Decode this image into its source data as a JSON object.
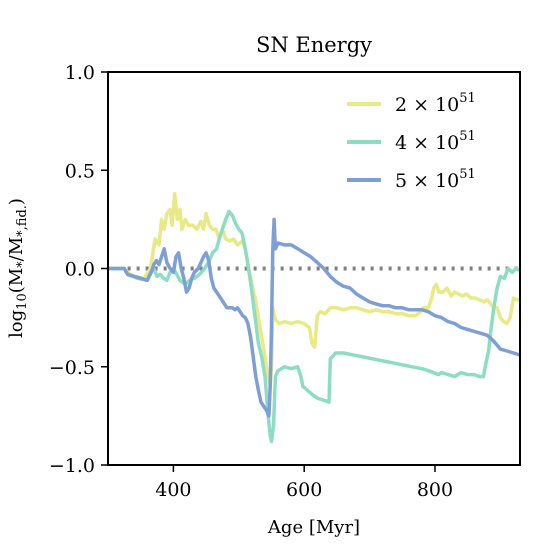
{
  "chart_data": {
    "type": "line",
    "title": "SN Energy",
    "xlabel": "Age [Myr]",
    "ylabel": "log₁₀(M₊/M₊,fid.)",
    "ylabel_parts": {
      "log": "log",
      "log_sub": "10",
      "open": "(M",
      "star1": "*",
      "slash": "/M",
      "star2": "*,fid.",
      "close": ")"
    },
    "xlim": [
      300,
      930
    ],
    "ylim": [
      -1.0,
      1.0
    ],
    "x_ticks": [
      400,
      600,
      800
    ],
    "x_tick_labels": [
      "400",
      "600",
      "800"
    ],
    "y_ticks": [
      1.0,
      0.5,
      0.0,
      -0.5,
      -1.0
    ],
    "y_tick_labels": [
      "1.0",
      "0.5",
      "0.0",
      "−0.5",
      "−1.0"
    ],
    "grid": false,
    "legend_position": "top-right",
    "reference_line": {
      "y": 0.0,
      "style": "dotted",
      "color": "#808080"
    },
    "series": [
      {
        "name": "2 × 10",
        "name_exp": "51",
        "color": "#e8ea86",
        "points": [
          [
            300,
            0.0
          ],
          [
            325,
            0.0
          ],
          [
            330,
            -0.02
          ],
          [
            340,
            -0.04
          ],
          [
            355,
            -0.05
          ],
          [
            365,
            0.0
          ],
          [
            372,
            0.15
          ],
          [
            378,
            0.12
          ],
          [
            382,
            0.25
          ],
          [
            386,
            0.2
          ],
          [
            390,
            0.28
          ],
          [
            395,
            0.3
          ],
          [
            398,
            0.22
          ],
          [
            402,
            0.38
          ],
          [
            406,
            0.25
          ],
          [
            410,
            0.3
          ],
          [
            413,
            0.2
          ],
          [
            418,
            0.25
          ],
          [
            423,
            0.22
          ],
          [
            430,
            0.22
          ],
          [
            436,
            0.2
          ],
          [
            442,
            0.24
          ],
          [
            446,
            0.2
          ],
          [
            450,
            0.28
          ],
          [
            455,
            0.22
          ],
          [
            460,
            0.2
          ],
          [
            465,
            0.2
          ],
          [
            470,
            0.15
          ],
          [
            475,
            0.2
          ],
          [
            480,
            0.15
          ],
          [
            486,
            0.14
          ],
          [
            492,
            0.15
          ],
          [
            498,
            0.12
          ],
          [
            505,
            0.14
          ],
          [
            510,
            0.1
          ],
          [
            515,
            0.0
          ],
          [
            520,
            -0.08
          ],
          [
            525,
            -0.15
          ],
          [
            530,
            -0.25
          ],
          [
            535,
            -0.35
          ],
          [
            540,
            -0.45
          ],
          [
            545,
            -0.55
          ],
          [
            548,
            -0.6
          ],
          [
            550,
            -0.5
          ],
          [
            552,
            -0.2
          ],
          [
            556,
            -0.26
          ],
          [
            562,
            -0.28
          ],
          [
            570,
            -0.27
          ],
          [
            580,
            -0.28
          ],
          [
            590,
            -0.27
          ],
          [
            600,
            -0.28
          ],
          [
            608,
            -0.3
          ],
          [
            612,
            -0.38
          ],
          [
            616,
            -0.4
          ],
          [
            620,
            -0.24
          ],
          [
            625,
            -0.22
          ],
          [
            632,
            -0.23
          ],
          [
            640,
            -0.2
          ],
          [
            650,
            -0.2
          ],
          [
            660,
            -0.21
          ],
          [
            670,
            -0.2
          ],
          [
            680,
            -0.2
          ],
          [
            690,
            -0.21
          ],
          [
            700,
            -0.22
          ],
          [
            710,
            -0.21
          ],
          [
            720,
            -0.22
          ],
          [
            730,
            -0.22
          ],
          [
            740,
            -0.23
          ],
          [
            750,
            -0.23
          ],
          [
            760,
            -0.24
          ],
          [
            770,
            -0.24
          ],
          [
            778,
            -0.22
          ],
          [
            782,
            -0.2
          ],
          [
            790,
            -0.2
          ],
          [
            795,
            -0.15
          ],
          [
            798,
            -0.1
          ],
          [
            802,
            -0.08
          ],
          [
            806,
            -0.12
          ],
          [
            812,
            -0.12
          ],
          [
            818,
            -0.1
          ],
          [
            825,
            -0.14
          ],
          [
            830,
            -0.12
          ],
          [
            836,
            -0.13
          ],
          [
            842,
            -0.14
          ],
          [
            848,
            -0.13
          ],
          [
            855,
            -0.15
          ],
          [
            862,
            -0.15
          ],
          [
            868,
            -0.16
          ],
          [
            875,
            -0.17
          ],
          [
            880,
            -0.16
          ],
          [
            885,
            -0.18
          ],
          [
            890,
            -0.2
          ],
          [
            895,
            -0.2
          ],
          [
            900,
            -0.25
          ],
          [
            905,
            -0.27
          ],
          [
            910,
            -0.28
          ],
          [
            915,
            -0.25
          ],
          [
            920,
            -0.15
          ],
          [
            925,
            -0.16
          ],
          [
            930,
            -0.16
          ]
        ]
      },
      {
        "name": "4 × 10",
        "name_exp": "51",
        "color": "#8ddcc4",
        "points": [
          [
            300,
            0.0
          ],
          [
            325,
            0.0
          ],
          [
            330,
            -0.03
          ],
          [
            345,
            -0.05
          ],
          [
            360,
            -0.06
          ],
          [
            365,
            -0.02
          ],
          [
            370,
            0.0
          ],
          [
            375,
            -0.04
          ],
          [
            380,
            -0.03
          ],
          [
            385,
            -0.05
          ],
          [
            390,
            -0.06
          ],
          [
            395,
            -0.02
          ],
          [
            400,
            0.0
          ],
          [
            405,
            -0.03
          ],
          [
            410,
            -0.06
          ],
          [
            418,
            -0.08
          ],
          [
            425,
            -0.06
          ],
          [
            432,
            -0.05
          ],
          [
            440,
            -0.03
          ],
          [
            448,
            0.0
          ],
          [
            455,
            0.04
          ],
          [
            460,
            0.08
          ],
          [
            466,
            0.1
          ],
          [
            470,
            0.15
          ],
          [
            475,
            0.2
          ],
          [
            480,
            0.25
          ],
          [
            485,
            0.29
          ],
          [
            490,
            0.27
          ],
          [
            495,
            0.23
          ],
          [
            500,
            0.2
          ],
          [
            505,
            0.18
          ],
          [
            510,
            0.1
          ],
          [
            515,
            0.0
          ],
          [
            520,
            -0.12
          ],
          [
            525,
            -0.25
          ],
          [
            530,
            -0.38
          ],
          [
            535,
            -0.45
          ],
          [
            540,
            -0.55
          ],
          [
            545,
            -0.75
          ],
          [
            548,
            -0.85
          ],
          [
            550,
            -0.88
          ],
          [
            553,
            -0.8
          ],
          [
            556,
            -0.55
          ],
          [
            560,
            -0.52
          ],
          [
            570,
            -0.5
          ],
          [
            580,
            -0.51
          ],
          [
            590,
            -0.5
          ],
          [
            595,
            -0.55
          ],
          [
            598,
            -0.6
          ],
          [
            605,
            -0.62
          ],
          [
            612,
            -0.64
          ],
          [
            620,
            -0.66
          ],
          [
            630,
            -0.67
          ],
          [
            638,
            -0.68
          ],
          [
            640,
            -0.46
          ],
          [
            648,
            -0.43
          ],
          [
            660,
            -0.43
          ],
          [
            675,
            -0.44
          ],
          [
            690,
            -0.45
          ],
          [
            705,
            -0.46
          ],
          [
            720,
            -0.47
          ],
          [
            735,
            -0.48
          ],
          [
            750,
            -0.49
          ],
          [
            765,
            -0.5
          ],
          [
            780,
            -0.51
          ],
          [
            790,
            -0.52
          ],
          [
            798,
            -0.53
          ],
          [
            805,
            -0.54
          ],
          [
            810,
            -0.53
          ],
          [
            820,
            -0.54
          ],
          [
            830,
            -0.55
          ],
          [
            840,
            -0.53
          ],
          [
            850,
            -0.54
          ],
          [
            860,
            -0.54
          ],
          [
            868,
            -0.55
          ],
          [
            874,
            -0.55
          ],
          [
            878,
            -0.48
          ],
          [
            882,
            -0.42
          ],
          [
            886,
            -0.3
          ],
          [
            890,
            -0.2
          ],
          [
            895,
            -0.1
          ],
          [
            900,
            -0.04
          ],
          [
            906,
            -0.05
          ],
          [
            912,
            0.0
          ],
          [
            918,
            -0.02
          ],
          [
            924,
            0.0
          ],
          [
            930,
            -0.01
          ]
        ]
      },
      {
        "name": "5 × 10",
        "name_exp": "51",
        "color": "#7e9ed6",
        "points": [
          [
            300,
            0.0
          ],
          [
            325,
            0.0
          ],
          [
            330,
            -0.03
          ],
          [
            340,
            -0.04
          ],
          [
            350,
            -0.05
          ],
          [
            360,
            -0.06
          ],
          [
            366,
            -0.02
          ],
          [
            370,
            0.02
          ],
          [
            374,
            0.04
          ],
          [
            378,
            0.02
          ],
          [
            382,
            0.06
          ],
          [
            386,
            0.1
          ],
          [
            390,
            0.03
          ],
          [
            395,
            0.0
          ],
          [
            400,
            -0.02
          ],
          [
            404,
            0.06
          ],
          [
            408,
            0.08
          ],
          [
            412,
            0.0
          ],
          [
            416,
            -0.05
          ],
          [
            420,
            -0.12
          ],
          [
            424,
            -0.1
          ],
          [
            428,
            -0.05
          ],
          [
            432,
            -0.02
          ],
          [
            438,
            0.0
          ],
          [
            442,
            0.03
          ],
          [
            446,
            0.06
          ],
          [
            450,
            0.08
          ],
          [
            454,
            0.04
          ],
          [
            458,
            -0.05
          ],
          [
            462,
            -0.1
          ],
          [
            466,
            -0.12
          ],
          [
            470,
            -0.14
          ],
          [
            474,
            -0.16
          ],
          [
            478,
            -0.18
          ],
          [
            482,
            -0.2
          ],
          [
            486,
            -0.2
          ],
          [
            490,
            -0.2
          ],
          [
            494,
            -0.21
          ],
          [
            498,
            -0.2
          ],
          [
            502,
            -0.22
          ],
          [
            506,
            -0.24
          ],
          [
            510,
            -0.25
          ],
          [
            514,
            -0.28
          ],
          [
            518,
            -0.35
          ],
          [
            522,
            -0.45
          ],
          [
            526,
            -0.55
          ],
          [
            530,
            -0.62
          ],
          [
            534,
            -0.68
          ],
          [
            538,
            -0.7
          ],
          [
            542,
            -0.72
          ],
          [
            546,
            -0.75
          ],
          [
            548,
            -0.6
          ],
          [
            550,
            -0.3
          ],
          [
            552,
            0.1
          ],
          [
            554,
            0.25
          ],
          [
            556,
            0.1
          ],
          [
            560,
            0.13
          ],
          [
            570,
            0.12
          ],
          [
            580,
            0.12
          ],
          [
            590,
            0.1
          ],
          [
            600,
            0.08
          ],
          [
            610,
            0.06
          ],
          [
            620,
            0.03
          ],
          [
            630,
            0.0
          ],
          [
            640,
            -0.04
          ],
          [
            650,
            -0.07
          ],
          [
            660,
            -0.09
          ],
          [
            670,
            -0.1
          ],
          [
            680,
            -0.13
          ],
          [
            690,
            -0.15
          ],
          [
            700,
            -0.17
          ],
          [
            710,
            -0.18
          ],
          [
            720,
            -0.19
          ],
          [
            730,
            -0.19
          ],
          [
            740,
            -0.2
          ],
          [
            750,
            -0.2
          ],
          [
            760,
            -0.21
          ],
          [
            770,
            -0.21
          ],
          [
            780,
            -0.21
          ],
          [
            790,
            -0.22
          ],
          [
            800,
            -0.24
          ],
          [
            810,
            -0.25
          ],
          [
            820,
            -0.27
          ],
          [
            830,
            -0.28
          ],
          [
            840,
            -0.3
          ],
          [
            850,
            -0.31
          ],
          [
            860,
            -0.32
          ],
          [
            870,
            -0.33
          ],
          [
            880,
            -0.34
          ],
          [
            890,
            -0.37
          ],
          [
            900,
            -0.41
          ],
          [
            910,
            -0.42
          ],
          [
            920,
            -0.43
          ],
          [
            930,
            -0.44
          ]
        ]
      }
    ]
  }
}
